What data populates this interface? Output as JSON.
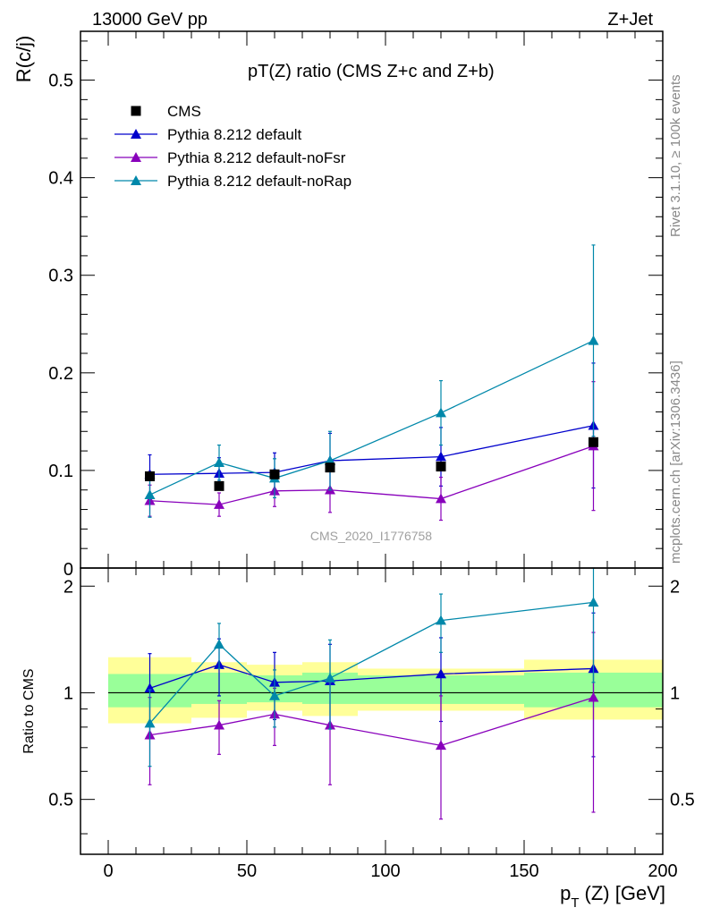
{
  "header": {
    "left": "13000 GeV pp",
    "right": "Z+Jet"
  },
  "side_labels": {
    "rivet": "Rivet 3.1.10, ≥ 100k events",
    "mcplots": "mcplots.cern.ch [arXiv:1306.3436]"
  },
  "chart_data": {
    "type": "scatter",
    "title": "pT(Z) ratio (CMS  Z+c and Z+b)",
    "analysis": "CMS_2020_I1776758",
    "xlabel": "p_T (Z) [GeV]",
    "xlabel_main": "p",
    "xlabel_sub": "T",
    "xlabel_rest": "(Z) [GeV]",
    "ylabel": "R(c/j)",
    "ratio_ylabel": "Ratio to CMS",
    "xlim": [
      -10,
      200
    ],
    "ylim": [
      0,
      0.55
    ],
    "ratio_ylim": [
      0.35,
      2.25
    ],
    "legend_position": "top-left",
    "x_ticks": [
      "0",
      "50",
      "100",
      "150",
      "200"
    ],
    "y_ticks": [
      "0.1",
      "0.2",
      "0.3",
      "0.4",
      "0.5"
    ],
    "y_zero_label": "0",
    "ratio_ticks": [
      "0.5",
      "1",
      "2"
    ],
    "x_bins": [
      [
        0,
        30
      ],
      [
        30,
        50
      ],
      [
        50,
        70
      ],
      [
        70,
        90
      ],
      [
        90,
        150
      ],
      [
        150,
        200
      ]
    ],
    "cms": {
      "name": "CMS",
      "color": "#000000",
      "x": [
        15,
        40,
        60,
        80,
        120,
        175
      ],
      "y": [
        0.094,
        0.084,
        0.096,
        0.103,
        0.104,
        0.129
      ],
      "band_1sigma": [
        [
          0.91,
          1.13
        ],
        [
          0.93,
          1.14
        ],
        [
          0.94,
          1.12
        ],
        [
          0.93,
          1.14
        ],
        [
          0.93,
          1.12
        ],
        [
          0.91,
          1.14
        ]
      ],
      "band_2sigma": [
        [
          0.82,
          1.26
        ],
        [
          0.85,
          1.22
        ],
        [
          0.89,
          1.2
        ],
        [
          0.86,
          1.22
        ],
        [
          0.89,
          1.17
        ],
        [
          0.84,
          1.24
        ]
      ]
    },
    "series": [
      {
        "name": "Pythia 8.212 default",
        "color": "#0000cc",
        "x": [
          15,
          40,
          60,
          80,
          120,
          175
        ],
        "y": [
          0.096,
          0.097,
          0.098,
          0.11,
          0.114,
          0.146
        ],
        "err": [
          0.02,
          0.016,
          0.02,
          0.028,
          0.03,
          0.064
        ],
        "ratio": [
          1.03,
          1.2,
          1.07,
          1.08,
          1.13,
          1.17
        ],
        "ratio_err": [
          0.26,
          0.22,
          0.23,
          0.29,
          0.3,
          0.51
        ]
      },
      {
        "name": "Pythia 8.212 default-noFsr",
        "color": "#8800bb",
        "x": [
          15,
          40,
          60,
          80,
          120,
          175
        ],
        "y": [
          0.069,
          0.065,
          0.079,
          0.08,
          0.071,
          0.125
        ],
        "err": [
          0.016,
          0.012,
          0.016,
          0.023,
          0.022,
          0.066
        ],
        "ratio": [
          0.76,
          0.81,
          0.87,
          0.81,
          0.71,
          0.97
        ],
        "ratio_err": [
          0.21,
          0.14,
          0.16,
          0.26,
          0.27,
          0.51
        ]
      },
      {
        "name": "Pythia 8.212 default-noRap",
        "color": "#0088aa",
        "x": [
          15,
          40,
          60,
          80,
          120,
          175
        ],
        "y": [
          0.075,
          0.108,
          0.092,
          0.11,
          0.159,
          0.233
        ],
        "err": [
          0.023,
          0.018,
          0.02,
          0.03,
          0.033,
          0.098
        ],
        "ratio": [
          0.82,
          1.37,
          0.98,
          1.1,
          1.6,
          1.8
        ],
        "ratio_err": [
          0.2,
          0.2,
          0.18,
          0.31,
          0.3,
          0.73
        ]
      }
    ]
  }
}
